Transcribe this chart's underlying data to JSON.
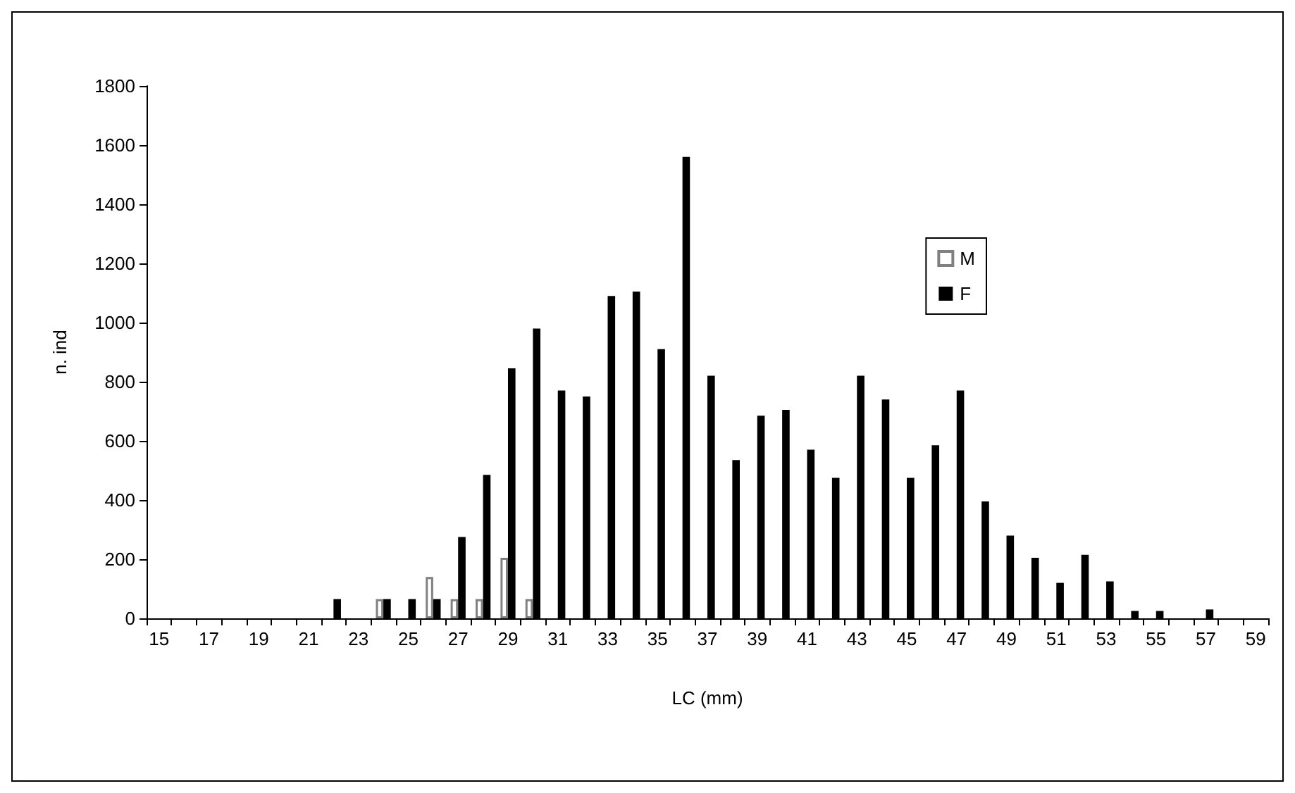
{
  "chart_data": {
    "type": "bar",
    "xlabel": "LC (mm)",
    "ylabel": "n. ind",
    "categories": [
      "15",
      null,
      "17",
      null,
      "19",
      null,
      "21",
      null,
      "23",
      null,
      "25",
      null,
      "27",
      null,
      "29",
      null,
      "31",
      null,
      "33",
      null,
      "35",
      null,
      "37",
      null,
      "39",
      null,
      "41",
      null,
      "43",
      null,
      "45",
      null,
      "47",
      null,
      "49",
      null,
      "51",
      null,
      "53",
      null,
      "55",
      null,
      "57",
      null,
      "59"
    ],
    "series": [
      {
        "name": "M",
        "color": "#808080",
        "values": [
          null,
          null,
          null,
          null,
          null,
          null,
          null,
          null,
          null,
          65,
          null,
          140,
          65,
          65,
          205,
          65,
          null,
          null,
          null,
          null,
          null,
          null,
          null,
          null,
          null,
          null,
          null,
          null,
          null,
          null,
          null,
          null,
          null,
          null,
          null,
          null,
          null,
          null,
          null,
          null,
          null,
          null,
          null,
          null,
          null
        ]
      },
      {
        "name": "F",
        "color": "#000000",
        "values": [
          null,
          null,
          null,
          null,
          null,
          null,
          null,
          65,
          null,
          65,
          65,
          65,
          275,
          485,
          845,
          980,
          770,
          750,
          1090,
          1105,
          910,
          1560,
          820,
          535,
          685,
          705,
          570,
          475,
          820,
          740,
          475,
          585,
          770,
          395,
          280,
          205,
          120,
          215,
          125,
          25,
          25,
          null,
          30,
          null,
          null
        ]
      }
    ],
    "ylim": [
      0,
      1800
    ],
    "yticks": [
      0,
      200,
      400,
      600,
      800,
      1000,
      1200,
      1400,
      1600,
      1800
    ],
    "grid": false,
    "legend": "right"
  }
}
